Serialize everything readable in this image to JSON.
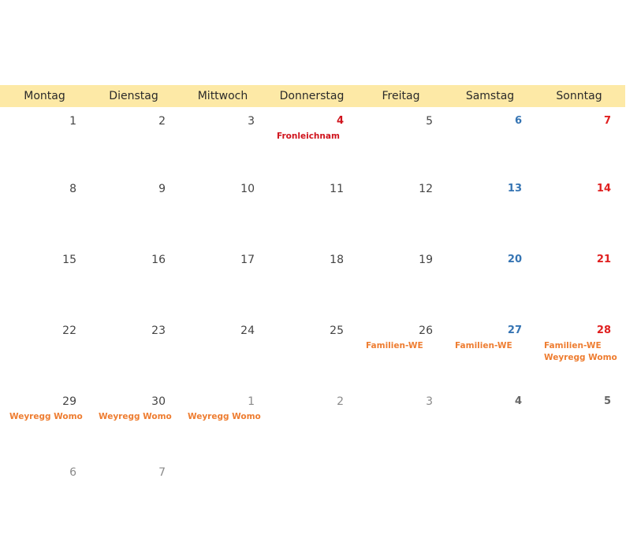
{
  "weekdays": [
    "Montag",
    "Dienstag",
    "Mittwoch",
    "Donnerstag",
    "Freitag",
    "Samstag",
    "Sonntag"
  ],
  "colors": {
    "header_bg": "#fde9a6",
    "saturday": "#3574b3",
    "sunday": "#e02020",
    "holiday": "#d0141d",
    "event": "#ee7d31"
  },
  "weeks": [
    [
      {
        "day": "1",
        "type": "normal",
        "events": []
      },
      {
        "day": "2",
        "type": "normal",
        "events": []
      },
      {
        "day": "3",
        "type": "normal",
        "events": []
      },
      {
        "day": "4",
        "type": "hol",
        "events": [
          {
            "text": "Fronleichnam",
            "color": "#d0141d"
          }
        ]
      },
      {
        "day": "5",
        "type": "normal",
        "events": []
      },
      {
        "day": "6",
        "type": "sat",
        "events": []
      },
      {
        "day": "7",
        "type": "sun",
        "events": []
      }
    ],
    [
      {
        "day": "8",
        "type": "normal",
        "events": []
      },
      {
        "day": "9",
        "type": "normal",
        "events": []
      },
      {
        "day": "10",
        "type": "normal",
        "events": []
      },
      {
        "day": "11",
        "type": "normal",
        "events": []
      },
      {
        "day": "12",
        "type": "normal",
        "events": []
      },
      {
        "day": "13",
        "type": "sat",
        "events": []
      },
      {
        "day": "14",
        "type": "sun",
        "events": []
      }
    ],
    [
      {
        "day": "15",
        "type": "normal",
        "events": []
      },
      {
        "day": "16",
        "type": "normal",
        "events": []
      },
      {
        "day": "17",
        "type": "normal",
        "events": []
      },
      {
        "day": "18",
        "type": "normal",
        "events": []
      },
      {
        "day": "19",
        "type": "normal",
        "events": []
      },
      {
        "day": "20",
        "type": "sat",
        "events": []
      },
      {
        "day": "21",
        "type": "sun",
        "events": []
      }
    ],
    [
      {
        "day": "22",
        "type": "normal",
        "events": []
      },
      {
        "day": "23",
        "type": "normal",
        "events": []
      },
      {
        "day": "24",
        "type": "normal",
        "events": []
      },
      {
        "day": "25",
        "type": "normal",
        "events": []
      },
      {
        "day": "26",
        "type": "normal",
        "events": [
          {
            "text": "Familien-WE",
            "color": "#ee7d31"
          }
        ]
      },
      {
        "day": "27",
        "type": "sat",
        "events": [
          {
            "text": "Familien-WE",
            "color": "#ee7d31"
          }
        ]
      },
      {
        "day": "28",
        "type": "sun",
        "events": [
          {
            "text": "Familien-WE",
            "color": "#ee7d31"
          },
          {
            "text": "Weyregg Womo",
            "color": "#ee7d31"
          }
        ]
      }
    ],
    [
      {
        "day": "29",
        "type": "normal",
        "events": [
          {
            "text": "Weyregg Womo",
            "color": "#ee7d31"
          }
        ]
      },
      {
        "day": "30",
        "type": "normal",
        "events": [
          {
            "text": "Weyregg Womo",
            "color": "#ee7d31"
          }
        ]
      },
      {
        "day": "1",
        "type": "other",
        "events": [
          {
            "text": "Weyregg Womo",
            "color": "#ee7d31"
          }
        ]
      },
      {
        "day": "2",
        "type": "other",
        "events": []
      },
      {
        "day": "3",
        "type": "other",
        "events": []
      },
      {
        "day": "4",
        "type": "other-we",
        "events": []
      },
      {
        "day": "5",
        "type": "other-we",
        "events": []
      }
    ],
    [
      {
        "day": "6",
        "type": "other",
        "events": []
      },
      {
        "day": "7",
        "type": "other",
        "events": []
      },
      {
        "day": "",
        "type": "empty",
        "events": []
      },
      {
        "day": "",
        "type": "empty",
        "events": []
      },
      {
        "day": "",
        "type": "empty",
        "events": []
      },
      {
        "day": "",
        "type": "empty",
        "events": []
      },
      {
        "day": "",
        "type": "empty",
        "events": []
      }
    ]
  ]
}
